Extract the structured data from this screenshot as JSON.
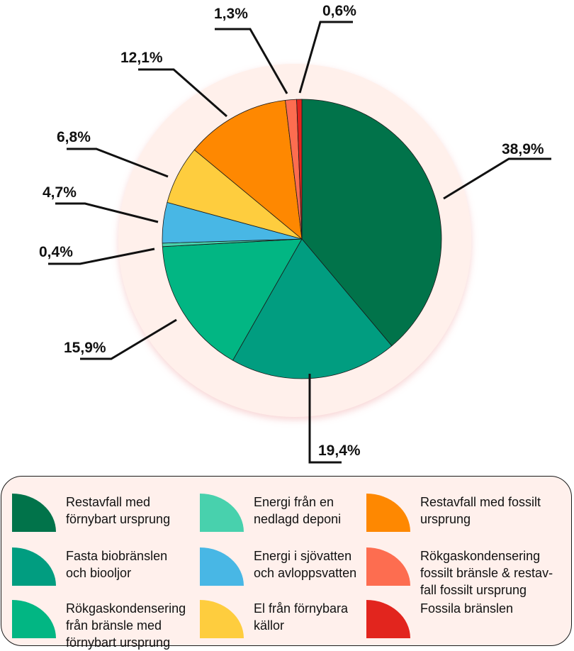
{
  "chart_data": {
    "type": "pie",
    "title": "",
    "slices": [
      {
        "label": "Restavfall med förnybart ursprung",
        "value": 38.9,
        "value_label": "38,9%",
        "color": "#01734a"
      },
      {
        "label": "Fasta biobränslen och biooljor",
        "value": 19.4,
        "value_label": "19,4%",
        "color": "#019d80"
      },
      {
        "label": "Rökgaskondensering från bränsle med förnybart ursprung",
        "value": 15.9,
        "value_label": "15,9%",
        "color": "#02b683"
      },
      {
        "label": "Energi från en nedlagd deponi",
        "value": 0.4,
        "value_label": "0,4%",
        "color": "#48d1ad"
      },
      {
        "label": "Energi i sjövatten och avloppsvatten",
        "value": 4.7,
        "value_label": "4,7%",
        "color": "#48b7e5"
      },
      {
        "label": "El från förnybara källor",
        "value": 6.8,
        "value_label": "6,8%",
        "color": "#fecd3e"
      },
      {
        "label": "Restavfall med fossilt ursprung",
        "value": 12.1,
        "value_label": "12,1%",
        "color": "#fe8801"
      },
      {
        "label": "Rökgaskondensering fossilt bränsle & restavfall fossilt ursprung",
        "value": 1.3,
        "value_label": "1,3%",
        "color": "#fd6d50"
      },
      {
        "label": "Fossila bränslen",
        "value": 0.6,
        "value_label": "0,6%",
        "color": "#e2251e"
      }
    ],
    "legend_position": "bottom"
  },
  "legend": {
    "items": [
      {
        "label": "Restavfall med\nförnybart ursprung",
        "color": "#01734a"
      },
      {
        "label": "Fasta biobränslen\noch biooljor",
        "color": "#019d80"
      },
      {
        "label": "Rökgaskondensering\nfrån bränsle med\nförnybart ursprung",
        "color": "#02b683"
      },
      {
        "label": "Energi från en\nnedlagd deponi",
        "color": "#48d1ad"
      },
      {
        "label": "Energi i sjövatten\noch avloppsvatten",
        "color": "#48b7e5"
      },
      {
        "label": "El från förnybara\nkällor",
        "color": "#fecd3e"
      },
      {
        "label": "Restavfall med fossilt\nursprung",
        "color": "#fe8801"
      },
      {
        "label": "Rökgaskondensering\nfossilt bränsle & restav-\nfall fossilt ursprung",
        "color": "#fd6d50"
      },
      {
        "label": "Fossila bränslen",
        "color": "#e2251e"
      }
    ]
  }
}
